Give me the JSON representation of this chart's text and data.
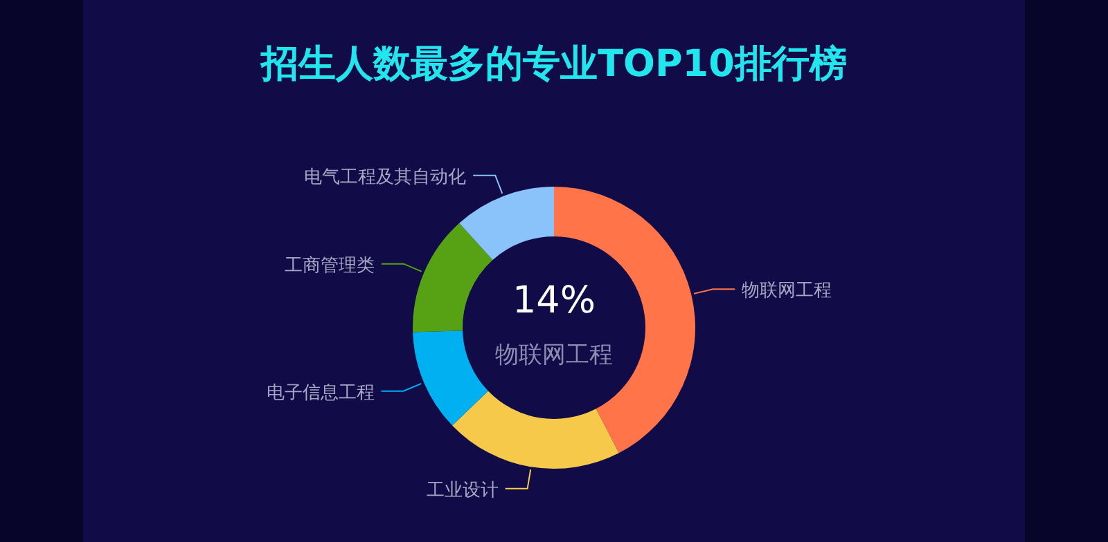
{
  "chart_data": {
    "type": "donut",
    "title": "招生人数最多的专业TOP10排行榜",
    "categories": [
      "物联网工程",
      "工业设计",
      "电子信息工程",
      "工商管理类",
      "电气工程及其自动化"
    ],
    "values": [
      42.4,
      20.4,
      11.7,
      13.8,
      11.7
    ],
    "colors": [
      "#ff7448",
      "#f7c94a",
      "#00b0f0",
      "#56a214",
      "#8ac2fa"
    ],
    "annotations": [
      "14%",
      "物联网工程"
    ]
  }
}
